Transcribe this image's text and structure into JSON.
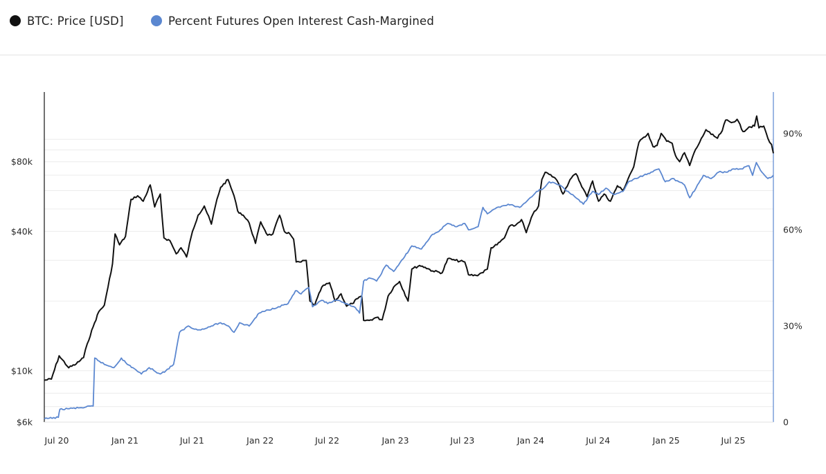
{
  "legend": [
    {
      "label": "BTC: Price [USD]",
      "color": "#111111"
    },
    {
      "label": "Percent Futures Open Interest Cash-Margined",
      "color": "#5b87d0"
    }
  ],
  "chart_data": {
    "type": "line",
    "title": "",
    "xlabel": "",
    "y_left": {
      "scale": "log",
      "range": [
        6000,
        160000
      ],
      "ticks": [
        {
          "value": 6000,
          "label": "$6k"
        },
        {
          "value": 10000,
          "label": "$10k"
        },
        {
          "value": 40000,
          "label": "$40k"
        },
        {
          "value": 80000,
          "label": "$80k"
        }
      ]
    },
    "y_right": {
      "scale": "linear",
      "range": [
        0,
        103
      ],
      "ticks": [
        {
          "value": 0,
          "label": "0"
        },
        {
          "value": 30,
          "label": "30%"
        },
        {
          "value": 60,
          "label": "60%"
        },
        {
          "value": 90,
          "label": "90%"
        }
      ]
    },
    "x_range": [
      "2020-07-01",
      "2025-11-20"
    ],
    "x_ticks": [
      {
        "date": "2020-07-01",
        "label": "Jul 20"
      },
      {
        "date": "2021-01-01",
        "label": "Jan 21"
      },
      {
        "date": "2021-07-01",
        "label": "Jul 21"
      },
      {
        "date": "2022-01-01",
        "label": "Jan 22"
      },
      {
        "date": "2022-07-01",
        "label": "Jul 22"
      },
      {
        "date": "2023-01-01",
        "label": "Jan 23"
      },
      {
        "date": "2023-07-01",
        "label": "Jul 23"
      },
      {
        "date": "2024-01-01",
        "label": "Jan 24"
      },
      {
        "date": "2024-07-01",
        "label": "Jul 24"
      },
      {
        "date": "2025-01-01",
        "label": "Jan 25"
      },
      {
        "date": "2025-07-01",
        "label": "Jul 25"
      }
    ],
    "grid": true,
    "legend_position": "top-left",
    "series": [
      {
        "name": "BTC: Price [USD]",
        "axis": "left",
        "color": "#111111",
        "x": [
          "2020-07-01",
          "2020-07-20",
          "2020-08-10",
          "2020-09-05",
          "2020-09-25",
          "2020-10-15",
          "2020-10-25",
          "2020-11-10",
          "2020-11-25",
          "2020-12-10",
          "2020-12-20",
          "2021-01-01",
          "2021-01-08",
          "2021-01-20",
          "2021-02-05",
          "2021-02-20",
          "2021-03-10",
          "2021-03-25",
          "2021-04-13",
          "2021-04-25",
          "2021-05-10",
          "2021-05-20",
          "2021-06-05",
          "2021-06-22",
          "2021-07-05",
          "2021-07-20",
          "2021-08-05",
          "2021-08-20",
          "2021-09-06",
          "2021-09-25",
          "2021-10-10",
          "2021-10-20",
          "2021-11-09",
          "2021-11-25",
          "2021-12-05",
          "2021-12-20",
          "2022-01-05",
          "2022-01-22",
          "2022-02-05",
          "2022-02-24",
          "2022-03-10",
          "2022-03-28",
          "2022-04-10",
          "2022-04-25",
          "2022-05-05",
          "2022-05-12",
          "2022-05-25",
          "2022-06-08",
          "2022-06-18",
          "2022-07-01",
          "2022-07-20",
          "2022-08-10",
          "2022-08-25",
          "2022-09-10",
          "2022-09-25",
          "2022-10-10",
          "2022-10-25",
          "2022-11-05",
          "2022-11-10",
          "2022-11-25",
          "2022-12-15",
          "2022-12-30",
          "2023-01-15",
          "2023-01-30",
          "2023-02-15",
          "2023-03-10",
          "2023-03-20",
          "2023-04-10",
          "2023-04-25",
          "2023-05-15",
          "2023-06-10",
          "2023-06-25",
          "2023-07-15",
          "2023-08-10",
          "2023-08-20",
          "2023-09-10",
          "2023-09-25",
          "2023-10-10",
          "2023-10-20",
          "2023-11-05",
          "2023-11-25",
          "2023-12-08",
          "2023-12-25",
          "2024-01-10",
          "2024-01-23",
          "2024-02-10",
          "2024-02-25",
          "2024-03-05",
          "2024-03-14",
          "2024-03-25",
          "2024-04-10",
          "2024-04-20",
          "2024-05-01",
          "2024-05-20",
          "2024-06-05",
          "2024-06-25",
          "2024-07-05",
          "2024-07-20",
          "2024-08-05",
          "2024-08-20",
          "2024-09-06",
          "2024-09-25",
          "2024-10-10",
          "2024-10-28",
          "2024-11-08",
          "2024-11-22",
          "2024-12-05",
          "2024-12-17",
          "2024-12-30",
          "2025-01-10",
          "2025-01-21",
          "2025-02-05",
          "2025-02-20",
          "2025-03-01",
          "2025-03-12",
          "2025-03-25",
          "2025-04-08",
          "2025-04-20",
          "2025-05-05",
          "2025-05-22",
          "2025-06-05",
          "2025-06-22",
          "2025-07-05",
          "2025-07-14",
          "2025-07-30",
          "2025-08-14",
          "2025-08-30",
          "2025-09-15",
          "2025-09-30",
          "2025-10-06",
          "2025-10-12",
          "2025-10-25",
          "2025-11-05",
          "2025-11-15",
          "2025-11-20"
        ],
        "values": [
          9100,
          9200,
          11600,
          10300,
          10700,
          11400,
          13100,
          15500,
          18000,
          19200,
          23000,
          29000,
          39000,
          35000,
          38000,
          55000,
          57000,
          54000,
          63500,
          51000,
          58000,
          37500,
          36500,
          32000,
          34000,
          31000,
          40000,
          47000,
          51500,
          43000,
          55000,
          62000,
          67000,
          57000,
          49000,
          47000,
          43500,
          35500,
          44000,
          38500,
          39000,
          47000,
          40000,
          39000,
          37000,
          29500,
          29500,
          30000,
          20000,
          19200,
          23000,
          24000,
          20000,
          21500,
          19000,
          19500,
          20500,
          21000,
          16500,
          16500,
          17000,
          16600,
          21000,
          23000,
          24300,
          20000,
          27500,
          28500,
          28000,
          27000,
          26500,
          30500,
          30000,
          29500,
          26000,
          25800,
          26500,
          27500,
          34000,
          35000,
          37500,
          42000,
          42500,
          45000,
          39500,
          47500,
          51500,
          67000,
          72000,
          70500,
          68000,
          64000,
          58000,
          67000,
          71000,
          61000,
          56500,
          66000,
          54000,
          58000,
          54000,
          63000,
          60000,
          70000,
          76000,
          97000,
          102000,
          106000,
          93000,
          94000,
          106000,
          98000,
          96000,
          85000,
          80000,
          87500,
          77000,
          87500,
          97000,
          110000,
          105000,
          101000,
          109000,
          121000,
          118000,
          122000,
          108000,
          113000,
          114000,
          126000,
          112000,
          114000,
          101000,
          95000,
          87000
        ]
      },
      {
        "name": "Percent Futures Open Interest Cash-Margined",
        "axis": "right",
        "color": "#5b87d0",
        "x": [
          "2020-07-01",
          "2020-08-08",
          "2020-08-12",
          "2020-10-10",
          "2020-11-10",
          "2020-11-14",
          "2020-12-10",
          "2021-01-05",
          "2021-01-25",
          "2021-02-10",
          "2021-02-25",
          "2021-03-20",
          "2021-04-10",
          "2021-05-10",
          "2021-05-25",
          "2021-06-15",
          "2021-07-01",
          "2021-07-25",
          "2021-08-10",
          "2021-09-05",
          "2021-09-25",
          "2021-10-20",
          "2021-11-10",
          "2021-11-25",
          "2021-12-10",
          "2022-01-05",
          "2022-02-01",
          "2022-02-25",
          "2022-03-25",
          "2022-04-20",
          "2022-05-10",
          "2022-05-25",
          "2022-06-15",
          "2022-06-25",
          "2022-07-20",
          "2022-08-05",
          "2022-08-30",
          "2022-09-25",
          "2022-10-15",
          "2022-10-30",
          "2022-11-10",
          "2022-11-25",
          "2022-12-15",
          "2023-01-10",
          "2023-01-30",
          "2023-02-25",
          "2023-03-20",
          "2023-04-15",
          "2023-05-10",
          "2023-06-05",
          "2023-06-25",
          "2023-07-15",
          "2023-08-10",
          "2023-08-20",
          "2023-09-15",
          "2023-09-28",
          "2023-10-10",
          "2023-11-05",
          "2023-12-05",
          "2024-01-05",
          "2024-01-25",
          "2024-02-20",
          "2024-03-10",
          "2024-03-25",
          "2024-04-20",
          "2024-05-15",
          "2024-06-05",
          "2024-06-25",
          "2024-07-20",
          "2024-08-05",
          "2024-08-25",
          "2024-09-15",
          "2024-10-10",
          "2024-10-25",
          "2024-11-15",
          "2024-12-05",
          "2024-12-25",
          "2025-01-15",
          "2025-02-01",
          "2025-02-20",
          "2025-03-10",
          "2025-03-25",
          "2025-04-08",
          "2025-04-25",
          "2025-05-15",
          "2025-06-05",
          "2025-06-25",
          "2025-07-15",
          "2025-08-05",
          "2025-08-25",
          "2025-09-15",
          "2025-09-25",
          "2025-10-05",
          "2025-10-20",
          "2025-11-05",
          "2025-11-20"
        ],
        "values": [
          1,
          1.5,
          4,
          4.5,
          5,
          20,
          18,
          17,
          20,
          18,
          17,
          15,
          17,
          15,
          16,
          18,
          28,
          30,
          29,
          29,
          30,
          31,
          30,
          28,
          31,
          30,
          34,
          35,
          36,
          37,
          41,
          40,
          42,
          36,
          38,
          37,
          38,
          37,
          36,
          34,
          44,
          45,
          44,
          49,
          47,
          51,
          55,
          54,
          58,
          60,
          62,
          61,
          62,
          60,
          61,
          67,
          65,
          67,
          68,
          67,
          69,
          72,
          73,
          75,
          74,
          72,
          70,
          68,
          72,
          71,
          73,
          71,
          72,
          75,
          76,
          77,
          78,
          79,
          75,
          76,
          75,
          74,
          70,
          73,
          77,
          76,
          78,
          78,
          79,
          79,
          80,
          77,
          81,
          78,
          76,
          77
        ]
      }
    ]
  }
}
